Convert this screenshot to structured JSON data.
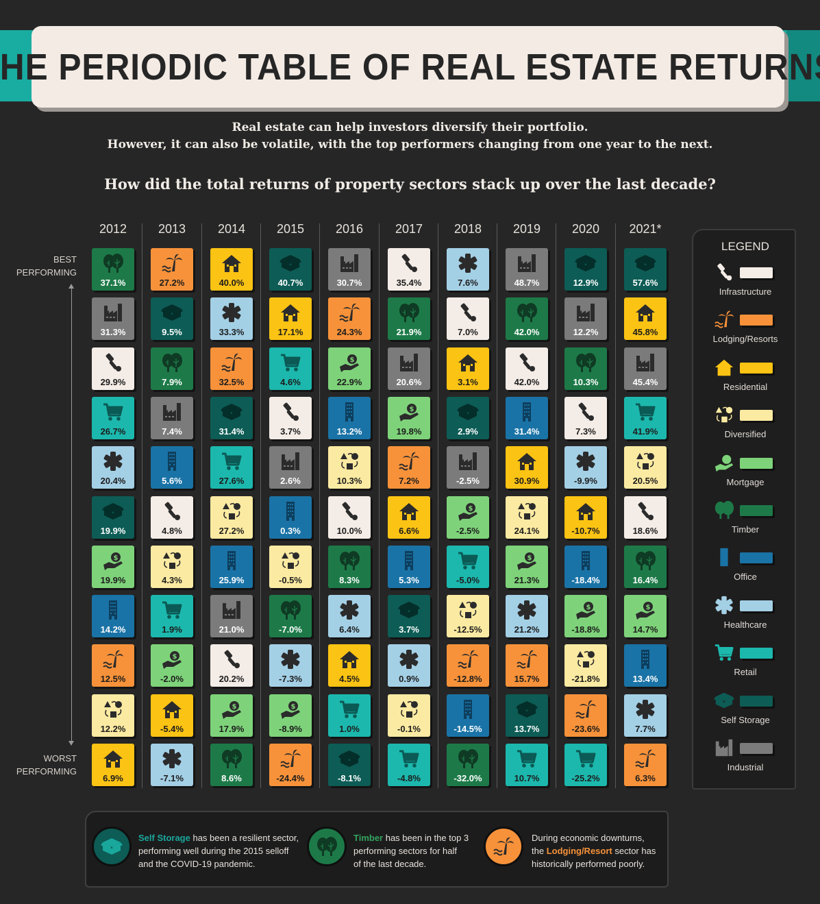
{
  "title": "THE PERIODIC TABLE OF REAL ESTATE RETURNS",
  "intro": {
    "line1": "Real estate can help investors diversify their portfolio.",
    "line2": "However, it can also be volatile, with the top performers changing from one year to the next."
  },
  "question": "How did the total returns of property sectors stack up over the last decade?",
  "axis": {
    "best_line1": "BEST",
    "best_line2": "PERFORMING",
    "worst_line1": "WORST",
    "worst_line2": "PERFORMING"
  },
  "legend": {
    "title": "LEGEND",
    "items": [
      {
        "key": "infrastructure",
        "label": "Infrastructure"
      },
      {
        "key": "lodging",
        "label": "Lodging/Resorts"
      },
      {
        "key": "residential",
        "label": "Residential"
      },
      {
        "key": "diversified",
        "label": "Diversified"
      },
      {
        "key": "mortgage",
        "label": "Mortgage"
      },
      {
        "key": "timber",
        "label": "Timber"
      },
      {
        "key": "office",
        "label": "Office"
      },
      {
        "key": "healthcare",
        "label": "Healthcare"
      },
      {
        "key": "retail",
        "label": "Retail"
      },
      {
        "key": "self_storage",
        "label": "Self Storage"
      },
      {
        "key": "industrial",
        "label": "Industrial"
      }
    ]
  },
  "colors": {
    "infrastructure": "#f4ece6",
    "lodging": "#f7923a",
    "residential": "#fbc313",
    "diversified": "#fbeaa2",
    "mortgage": "#7ed37a",
    "timber": "#1d7a48",
    "office": "#1a73a6",
    "healthcare": "#a4d0e6",
    "retail": "#1cb8ad",
    "self_storage": "#0d5c55",
    "industrial": "#7b7b7b"
  },
  "icon_colors": {
    "infrastructure": "#2b2b2b",
    "lodging": "#2b2b2b",
    "residential": "#2b2b2b",
    "diversified": "#2b2b2b",
    "mortgage": "#2b2b2b",
    "timber": "#0f3a24",
    "office": "#0d3f5e",
    "healthcare": "#2b2b2b",
    "retail": "#0b5a55",
    "self_storage": "#042e2a",
    "industrial": "#2b2b2b"
  },
  "chart_data": {
    "type": "table",
    "categories": [
      "2012",
      "2013",
      "2014",
      "2015",
      "2016",
      "2017",
      "2018",
      "2019",
      "2020",
      "2021*"
    ],
    "ranking": "Each year's column is ordered from best performing (top) to worst performing (bottom).",
    "columns": [
      [
        [
          "timber",
          "37.1%"
        ],
        [
          "industrial",
          "31.3%"
        ],
        [
          "infrastructure",
          "29.9%"
        ],
        [
          "retail",
          "26.7%"
        ],
        [
          "healthcare",
          "20.4%"
        ],
        [
          "self_storage",
          "19.9%"
        ],
        [
          "mortgage",
          "19.9%"
        ],
        [
          "office",
          "14.2%"
        ],
        [
          "lodging",
          "12.5%"
        ],
        [
          "diversified",
          "12.2%"
        ],
        [
          "residential",
          "6.9%"
        ]
      ],
      [
        [
          "lodging",
          "27.2%"
        ],
        [
          "self_storage",
          "9.5%"
        ],
        [
          "timber",
          "7.9%"
        ],
        [
          "industrial",
          "7.4%"
        ],
        [
          "office",
          "5.6%"
        ],
        [
          "infrastructure",
          "4.8%"
        ],
        [
          "diversified",
          "4.3%"
        ],
        [
          "retail",
          "1.9%"
        ],
        [
          "mortgage",
          "-2.0%"
        ],
        [
          "residential",
          "-5.4%"
        ],
        [
          "healthcare",
          "-7.1%"
        ]
      ],
      [
        [
          "residential",
          "40.0%"
        ],
        [
          "healthcare",
          "33.3%"
        ],
        [
          "lodging",
          "32.5%"
        ],
        [
          "self_storage",
          "31.4%"
        ],
        [
          "retail",
          "27.6%"
        ],
        [
          "diversified",
          "27.2%"
        ],
        [
          "office",
          "25.9%"
        ],
        [
          "industrial",
          "21.0%"
        ],
        [
          "infrastructure",
          "20.2%"
        ],
        [
          "mortgage",
          "17.9%"
        ],
        [
          "timber",
          "8.6%"
        ]
      ],
      [
        [
          "self_storage",
          "40.7%"
        ],
        [
          "residential",
          "17.1%"
        ],
        [
          "retail",
          "4.6%"
        ],
        [
          "infrastructure",
          "3.7%"
        ],
        [
          "industrial",
          "2.6%"
        ],
        [
          "office",
          "0.3%"
        ],
        [
          "diversified",
          "-0.5%"
        ],
        [
          "timber",
          "-7.0%"
        ],
        [
          "healthcare",
          "-7.3%"
        ],
        [
          "mortgage",
          "-8.9%"
        ],
        [
          "lodging",
          "-24.4%"
        ]
      ],
      [
        [
          "industrial",
          "30.7%"
        ],
        [
          "lodging",
          "24.3%"
        ],
        [
          "mortgage",
          "22.9%"
        ],
        [
          "office",
          "13.2%"
        ],
        [
          "diversified",
          "10.3%"
        ],
        [
          "infrastructure",
          "10.0%"
        ],
        [
          "timber",
          "8.3%"
        ],
        [
          "healthcare",
          "6.4%"
        ],
        [
          "residential",
          "4.5%"
        ],
        [
          "retail",
          "1.0%"
        ],
        [
          "self_storage",
          "-8.1%"
        ]
      ],
      [
        [
          "infrastructure",
          "35.4%"
        ],
        [
          "timber",
          "21.9%"
        ],
        [
          "industrial",
          "20.6%"
        ],
        [
          "mortgage",
          "19.8%"
        ],
        [
          "lodging",
          "7.2%"
        ],
        [
          "residential",
          "6.6%"
        ],
        [
          "office",
          "5.3%"
        ],
        [
          "self_storage",
          "3.7%"
        ],
        [
          "healthcare",
          "0.9%"
        ],
        [
          "diversified",
          "-0.1%"
        ],
        [
          "retail",
          "-4.8%"
        ]
      ],
      [
        [
          "healthcare",
          "7.6%"
        ],
        [
          "infrastructure",
          "7.0%"
        ],
        [
          "residential",
          "3.1%"
        ],
        [
          "self_storage",
          "2.9%"
        ],
        [
          "industrial",
          "-2.5%"
        ],
        [
          "mortgage",
          "-2.5%"
        ],
        [
          "retail",
          "-5.0%"
        ],
        [
          "diversified",
          "-12.5%"
        ],
        [
          "lodging",
          "-12.8%"
        ],
        [
          "office",
          "-14.5%"
        ],
        [
          "timber",
          "-32.0%"
        ]
      ],
      [
        [
          "industrial",
          "48.7%"
        ],
        [
          "timber",
          "42.0%"
        ],
        [
          "infrastructure",
          "42.0%"
        ],
        [
          "office",
          "31.4%"
        ],
        [
          "residential",
          "30.9%"
        ],
        [
          "diversified",
          "24.1%"
        ],
        [
          "mortgage",
          "21.3%"
        ],
        [
          "healthcare",
          "21.2%"
        ],
        [
          "lodging",
          "15.7%"
        ],
        [
          "self_storage",
          "13.7%"
        ],
        [
          "retail",
          "10.7%"
        ]
      ],
      [
        [
          "self_storage",
          "12.9%"
        ],
        [
          "industrial",
          "12.2%"
        ],
        [
          "timber",
          "10.3%"
        ],
        [
          "infrastructure",
          "7.3%"
        ],
        [
          "healthcare",
          "-9.9%"
        ],
        [
          "residential",
          "-10.7%"
        ],
        [
          "office",
          "-18.4%"
        ],
        [
          "mortgage",
          "-18.8%"
        ],
        [
          "diversified",
          "-21.8%"
        ],
        [
          "lodging",
          "-23.6%"
        ],
        [
          "retail",
          "-25.2%"
        ]
      ],
      [
        [
          "self_storage",
          "57.6%"
        ],
        [
          "residential",
          "45.8%"
        ],
        [
          "industrial",
          "45.4%"
        ],
        [
          "retail",
          "41.9%"
        ],
        [
          "diversified",
          "20.5%"
        ],
        [
          "infrastructure",
          "18.6%"
        ],
        [
          "timber",
          "16.4%"
        ],
        [
          "mortgage",
          "14.7%"
        ],
        [
          "office",
          "13.4%"
        ],
        [
          "healthcare",
          "7.7%"
        ],
        [
          "lodging",
          "6.3%"
        ]
      ]
    ]
  },
  "notes": [
    {
      "highlight": "Self Storage",
      "line1_rest": " has been a resilient sector,",
      "line2": "performing well during the 2015 selloff",
      "line3": "and the COVID-19 pandemic.",
      "highlight_color": "#1aa79c",
      "icon": "self-storage-icon"
    },
    {
      "highlight": "Timber",
      "line1_rest": " has been in the top 3",
      "line2": "performing sectors for half",
      "line3": "of the last decade.",
      "highlight_color": "#32a35f",
      "icon": "timber-icon"
    },
    {
      "line1": "During economic downturns,",
      "line2_pre": "the ",
      "highlight": "Lodging/Resort",
      "line2_rest": " sector has",
      "line3": "historically performed poorly.",
      "highlight_color": "#f7923a",
      "icon": "lodging-icon"
    }
  ]
}
